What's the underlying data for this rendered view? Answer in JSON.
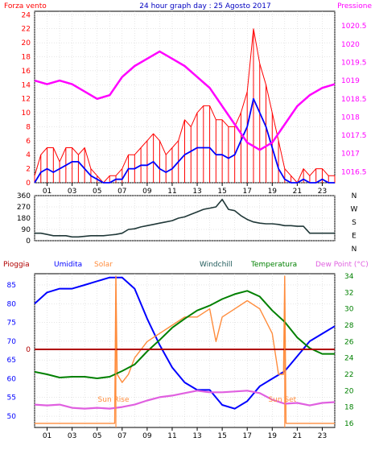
{
  "colors": {
    "wind_gust": "#ff0000",
    "wind_avg": "#0000ff",
    "pressure": "#ff00ff",
    "direction": "#203838",
    "humidity": "#0000ff",
    "solar": "#ff8c3c",
    "temperature": "#008000",
    "windchill": "#1f5a5a",
    "dew_point": "#e060e0",
    "rain": "#b00000",
    "panel_border": "#000000",
    "grid": "#cccccc"
  },
  "chart_data": [
    {
      "type": "line",
      "title": "24 hour graph day : 25 Agosto 2017",
      "left_label": "Forza vento",
      "right_label": "Pressione",
      "x_ticks": [
        "01",
        "03",
        "05",
        "07",
        "09",
        "11",
        "13",
        "15",
        "17",
        "19",
        "21",
        "23"
      ],
      "y_ticks_left": [
        "0",
        "2",
        "4",
        "6",
        "8",
        "10",
        "12",
        "14",
        "16",
        "18",
        "20",
        "22",
        "24"
      ],
      "y_ticks_right": [
        "1016.5",
        "1017",
        "1017.5",
        "1018",
        "1018.5",
        "1019",
        "1019.5",
        "1020",
        "1020.5"
      ],
      "xlim": [
        0,
        24
      ],
      "ylim_left": [
        0,
        24.5
      ],
      "ylim_right": [
        1016.2,
        1020.9
      ],
      "series": [
        {
          "key": "gust",
          "axis": "left",
          "x": [
            0.0,
            0.5,
            1.0,
            1.5,
            2.0,
            2.5,
            3.0,
            3.5,
            4.0,
            4.5,
            5.0,
            5.5,
            6.0,
            6.5,
            7.0,
            7.5,
            8.0,
            8.5,
            9.0,
            9.5,
            10.0,
            10.5,
            11.0,
            11.5,
            12.0,
            12.5,
            13.0,
            13.5,
            14.0,
            14.5,
            15.0,
            15.5,
            16.0,
            16.5,
            17.0,
            17.5,
            18.0,
            18.5,
            19.0,
            19.5,
            20.0,
            20.5,
            21.0,
            21.5,
            22.0,
            22.5,
            23.0,
            23.5,
            24.0
          ],
          "values": [
            1,
            4,
            5,
            5,
            3,
            5,
            5,
            4,
            5,
            2,
            1,
            0,
            1,
            1,
            2,
            4,
            4,
            5,
            6,
            7,
            6,
            4,
            5,
            6,
            9,
            8,
            10,
            11,
            11,
            9,
            9,
            8,
            8,
            10,
            13,
            22,
            17,
            14,
            10,
            6,
            2,
            1,
            0,
            2,
            1,
            2,
            2,
            1,
            1
          ]
        },
        {
          "key": "avg",
          "axis": "left",
          "x": [
            0.0,
            0.5,
            1.0,
            1.5,
            2.0,
            2.5,
            3.0,
            3.5,
            4.0,
            4.5,
            5.0,
            5.5,
            6.0,
            6.5,
            7.0,
            7.5,
            8.0,
            8.5,
            9.0,
            9.5,
            10.0,
            10.5,
            11.0,
            11.5,
            12.0,
            12.5,
            13.0,
            13.5,
            14.0,
            14.5,
            15.0,
            15.5,
            16.0,
            16.5,
            17.0,
            17.5,
            18.0,
            18.5,
            19.0,
            19.5,
            20.0,
            20.5,
            21.0,
            21.5,
            22.0,
            22.5,
            23.0,
            23.5,
            24.0
          ],
          "values": [
            0,
            1.5,
            2,
            1.5,
            2,
            2.5,
            3,
            3,
            2,
            1,
            0.5,
            0,
            0,
            0.5,
            0.5,
            2,
            2,
            2.5,
            2.5,
            3,
            2,
            1.5,
            2,
            3,
            4,
            4.5,
            5,
            5,
            5,
            4,
            4,
            3.5,
            4,
            6,
            8,
            12,
            10,
            8,
            5,
            2,
            0.5,
            0,
            0,
            0.5,
            0,
            0,
            0.5,
            0,
            0
          ]
        },
        {
          "key": "pressure",
          "axis": "right",
          "x": [
            0,
            1,
            2,
            3,
            4,
            5,
            6,
            7,
            8,
            9,
            10,
            11,
            12,
            13,
            14,
            15,
            16,
            17,
            18,
            19,
            20,
            21,
            22,
            23,
            24
          ],
          "values": [
            1019,
            1018.9,
            1019,
            1018.9,
            1018.7,
            1018.5,
            1018.6,
            1019.1,
            1019.4,
            1019.6,
            1019.8,
            1019.6,
            1019.4,
            1019.1,
            1018.8,
            1018.3,
            1017.8,
            1017.3,
            1017.1,
            1017.3,
            1017.8,
            1018.3,
            1018.6,
            1018.8,
            1018.9
          ]
        }
      ]
    },
    {
      "type": "line",
      "title": "",
      "right_label_letters": [
        "N",
        "W",
        "S",
        "E",
        "N"
      ],
      "x_ticks": [
        "01",
        "03",
        "05",
        "07",
        "09",
        "11",
        "13",
        "15",
        "17",
        "19",
        "21",
        "23"
      ],
      "y_ticks": [
        "0",
        "90",
        "180",
        "270",
        "360"
      ],
      "xlim": [
        0,
        24
      ],
      "ylim": [
        0,
        360
      ],
      "series": [
        {
          "key": "direction",
          "x": [
            0.0,
            0.5,
            1.0,
            1.5,
            2.0,
            2.5,
            3.0,
            3.5,
            4.0,
            4.5,
            5.0,
            5.5,
            6.0,
            6.5,
            7.0,
            7.5,
            8.0,
            8.5,
            9.0,
            9.5,
            10.0,
            10.5,
            11.0,
            11.5,
            12.0,
            12.5,
            13.0,
            13.5,
            14.0,
            14.5,
            15.0,
            15.5,
            16.0,
            16.5,
            17.0,
            17.5,
            18.0,
            18.5,
            19.0,
            19.5,
            20.0,
            20.5,
            21.0,
            21.5,
            22.0,
            22.5,
            23.0,
            23.5,
            24.0
          ],
          "values": [
            60,
            60,
            50,
            40,
            40,
            40,
            30,
            30,
            35,
            40,
            40,
            40,
            45,
            50,
            60,
            90,
            95,
            110,
            120,
            130,
            140,
            150,
            160,
            180,
            190,
            210,
            230,
            250,
            260,
            270,
            330,
            250,
            240,
            200,
            170,
            150,
            140,
            135,
            135,
            130,
            120,
            120,
            115,
            115,
            60,
            60,
            60,
            60,
            60
          ]
        }
      ]
    },
    {
      "type": "line",
      "title": "",
      "legend": [
        "Pioggia",
        "Umidita",
        "Solar",
        "Windchill",
        "Temperatura",
        "Dew Point (°C)"
      ],
      "x_ticks": [
        "01",
        "03",
        "05",
        "07",
        "09",
        "11",
        "13",
        "15",
        "17",
        "19",
        "21",
        "23"
      ],
      "y_ticks_left": [
        "50",
        "55",
        "60",
        "65",
        "70",
        "75",
        "80",
        "85"
      ],
      "y_ticks_right": [
        "16",
        "18",
        "20",
        "22",
        "24",
        "26",
        "28",
        "30",
        "32",
        "34"
      ],
      "rain_axis_label": "0",
      "annotations": [
        {
          "text": "Sun Rise",
          "x": 6.5
        },
        {
          "text": "Sun Set",
          "x": 20.0
        }
      ],
      "xlim": [
        0,
        24
      ],
      "ylim_left": [
        47,
        88
      ],
      "ylim_right": [
        15.5,
        34.3
      ],
      "series": [
        {
          "key": "humidity",
          "axis": "left",
          "x": [
            0,
            1,
            2,
            3,
            4,
            5,
            6,
            7,
            8,
            9,
            10,
            11,
            12,
            13,
            14,
            15,
            16,
            17,
            18,
            19,
            20,
            21,
            22,
            23,
            24
          ],
          "values": [
            80,
            83,
            84,
            84,
            85,
            86,
            87,
            87,
            84,
            76,
            69,
            63,
            59,
            57,
            57,
            53,
            52,
            54,
            58,
            60,
            62,
            66,
            70,
            72,
            74
          ]
        },
        {
          "key": "solar",
          "axis": "right",
          "x": [
            0,
            6.0,
            6.4,
            6.5,
            6.6,
            7,
            7.5,
            8,
            9,
            10,
            11,
            12,
            13,
            14,
            14.5,
            15,
            16,
            17,
            18,
            19,
            19.5,
            19.9,
            20.0,
            20.1,
            24
          ],
          "values": [
            16,
            16,
            16,
            34,
            22,
            21,
            22,
            24,
            26,
            27,
            28,
            29,
            29,
            30,
            26,
            29,
            30,
            31,
            30,
            27,
            22,
            22,
            34,
            16,
            16
          ]
        },
        {
          "key": "temperature",
          "axis": "right",
          "x": [
            0,
            1,
            2,
            3,
            4,
            5,
            6,
            7,
            8,
            9,
            10,
            11,
            12,
            13,
            14,
            15,
            16,
            17,
            18,
            19,
            20,
            21,
            22,
            23,
            24
          ],
          "values": [
            22.3,
            22.0,
            21.6,
            21.7,
            21.7,
            21.5,
            21.7,
            22.4,
            23.2,
            24.8,
            26.2,
            27.7,
            28.8,
            29.8,
            30.4,
            31.2,
            31.8,
            32.2,
            31.5,
            29.8,
            28.4,
            26.5,
            25.2,
            24.5,
            24.5
          ]
        },
        {
          "key": "dew_point",
          "axis": "right",
          "x": [
            0,
            1,
            2,
            3,
            4,
            5,
            6,
            7,
            8,
            9,
            10,
            11,
            12,
            13,
            14,
            15,
            16,
            17,
            18,
            19,
            20,
            21,
            22,
            23,
            24
          ],
          "values": [
            18.3,
            18.2,
            18.3,
            17.9,
            17.8,
            17.9,
            17.8,
            18.0,
            18.3,
            18.8,
            19.2,
            19.4,
            19.7,
            20.0,
            19.8,
            19.8,
            19.9,
            20.0,
            19.7,
            18.9,
            18.4,
            18.5,
            18.2,
            18.5,
            18.6
          ]
        },
        {
          "key": "rain",
          "axis": "rain",
          "x": [
            0,
            24
          ],
          "values": [
            0,
            0
          ]
        }
      ]
    }
  ]
}
